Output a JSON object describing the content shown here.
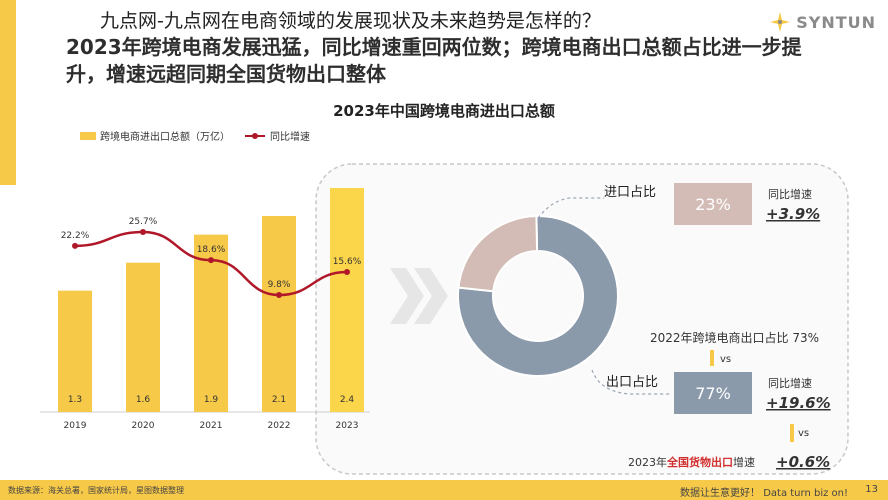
{
  "page_title": "九点网-九点网在电商领域的发展现状及未来趋势是怎样的？",
  "brand": {
    "name": "SYNTUN",
    "logo_icon": "syntun-star-icon"
  },
  "headline": "2023年跨境电商发展迅猛，同比增速重回两位数；跨境电商出口总额占比进一步提升，增速远超同期全国货物出口整体",
  "chart_data": [
    {
      "type": "bar",
      "title": "2023年中国跨境电商进出口总额",
      "categories": [
        "2019",
        "2020",
        "2021",
        "2022",
        "2023"
      ],
      "series": [
        {
          "name": "跨境电商进出口总额（万亿）",
          "type": "bar",
          "values": [
            1.3,
            1.6,
            1.9,
            2.1,
            2.4
          ],
          "labels": [
            "1.3",
            "1.6",
            "1.9",
            "2.1",
            "2.4"
          ],
          "color": "#f7c948",
          "highlight_color": "#fbd54a"
        },
        {
          "name": "同比增速",
          "type": "line",
          "values": [
            22.2,
            25.7,
            18.6,
            9.8,
            15.6
          ],
          "labels": [
            "22.2%",
            "25.7%",
            "18.6%",
            "9.8%",
            "15.6%"
          ],
          "color": "#b0182a"
        }
      ],
      "highlight_category": "2023"
    },
    {
      "type": "pie",
      "slices": [
        {
          "name": "进口占比",
          "value": 23,
          "label": "23%",
          "color": "#d3bcb6"
        },
        {
          "name": "出口占比",
          "value": 77,
          "label": "77%",
          "color": "#8b9aab"
        }
      ]
    }
  ],
  "callouts": {
    "import": {
      "label": "进口占比",
      "share": "23%",
      "growth_label": "同比增速",
      "growth_value": "+3.9%"
    },
    "export": {
      "label": "出口占比",
      "share": "77%",
      "growth_label": "同比增速",
      "growth_value": "+19.6%"
    },
    "comparison_2022": "2022年跨境电商出口占比 73%",
    "vs": "vs",
    "national": {
      "prefix": "2023年",
      "highlight": "全国货物出口",
      "suffix": "增速",
      "value": "+0.6%"
    }
  },
  "footer": {
    "source": "数据来源：海关总署，国家统计局，星图数据整理",
    "slogan": "数据让生意更好！ Data turn biz on!",
    "page_number": "13"
  },
  "colors": {
    "accent_yellow": "#f7c948",
    "line_red": "#b0182a",
    "import_pink": "#d3bcb6",
    "export_blue": "#8b9aab",
    "highlight_red": "#d0302f"
  }
}
